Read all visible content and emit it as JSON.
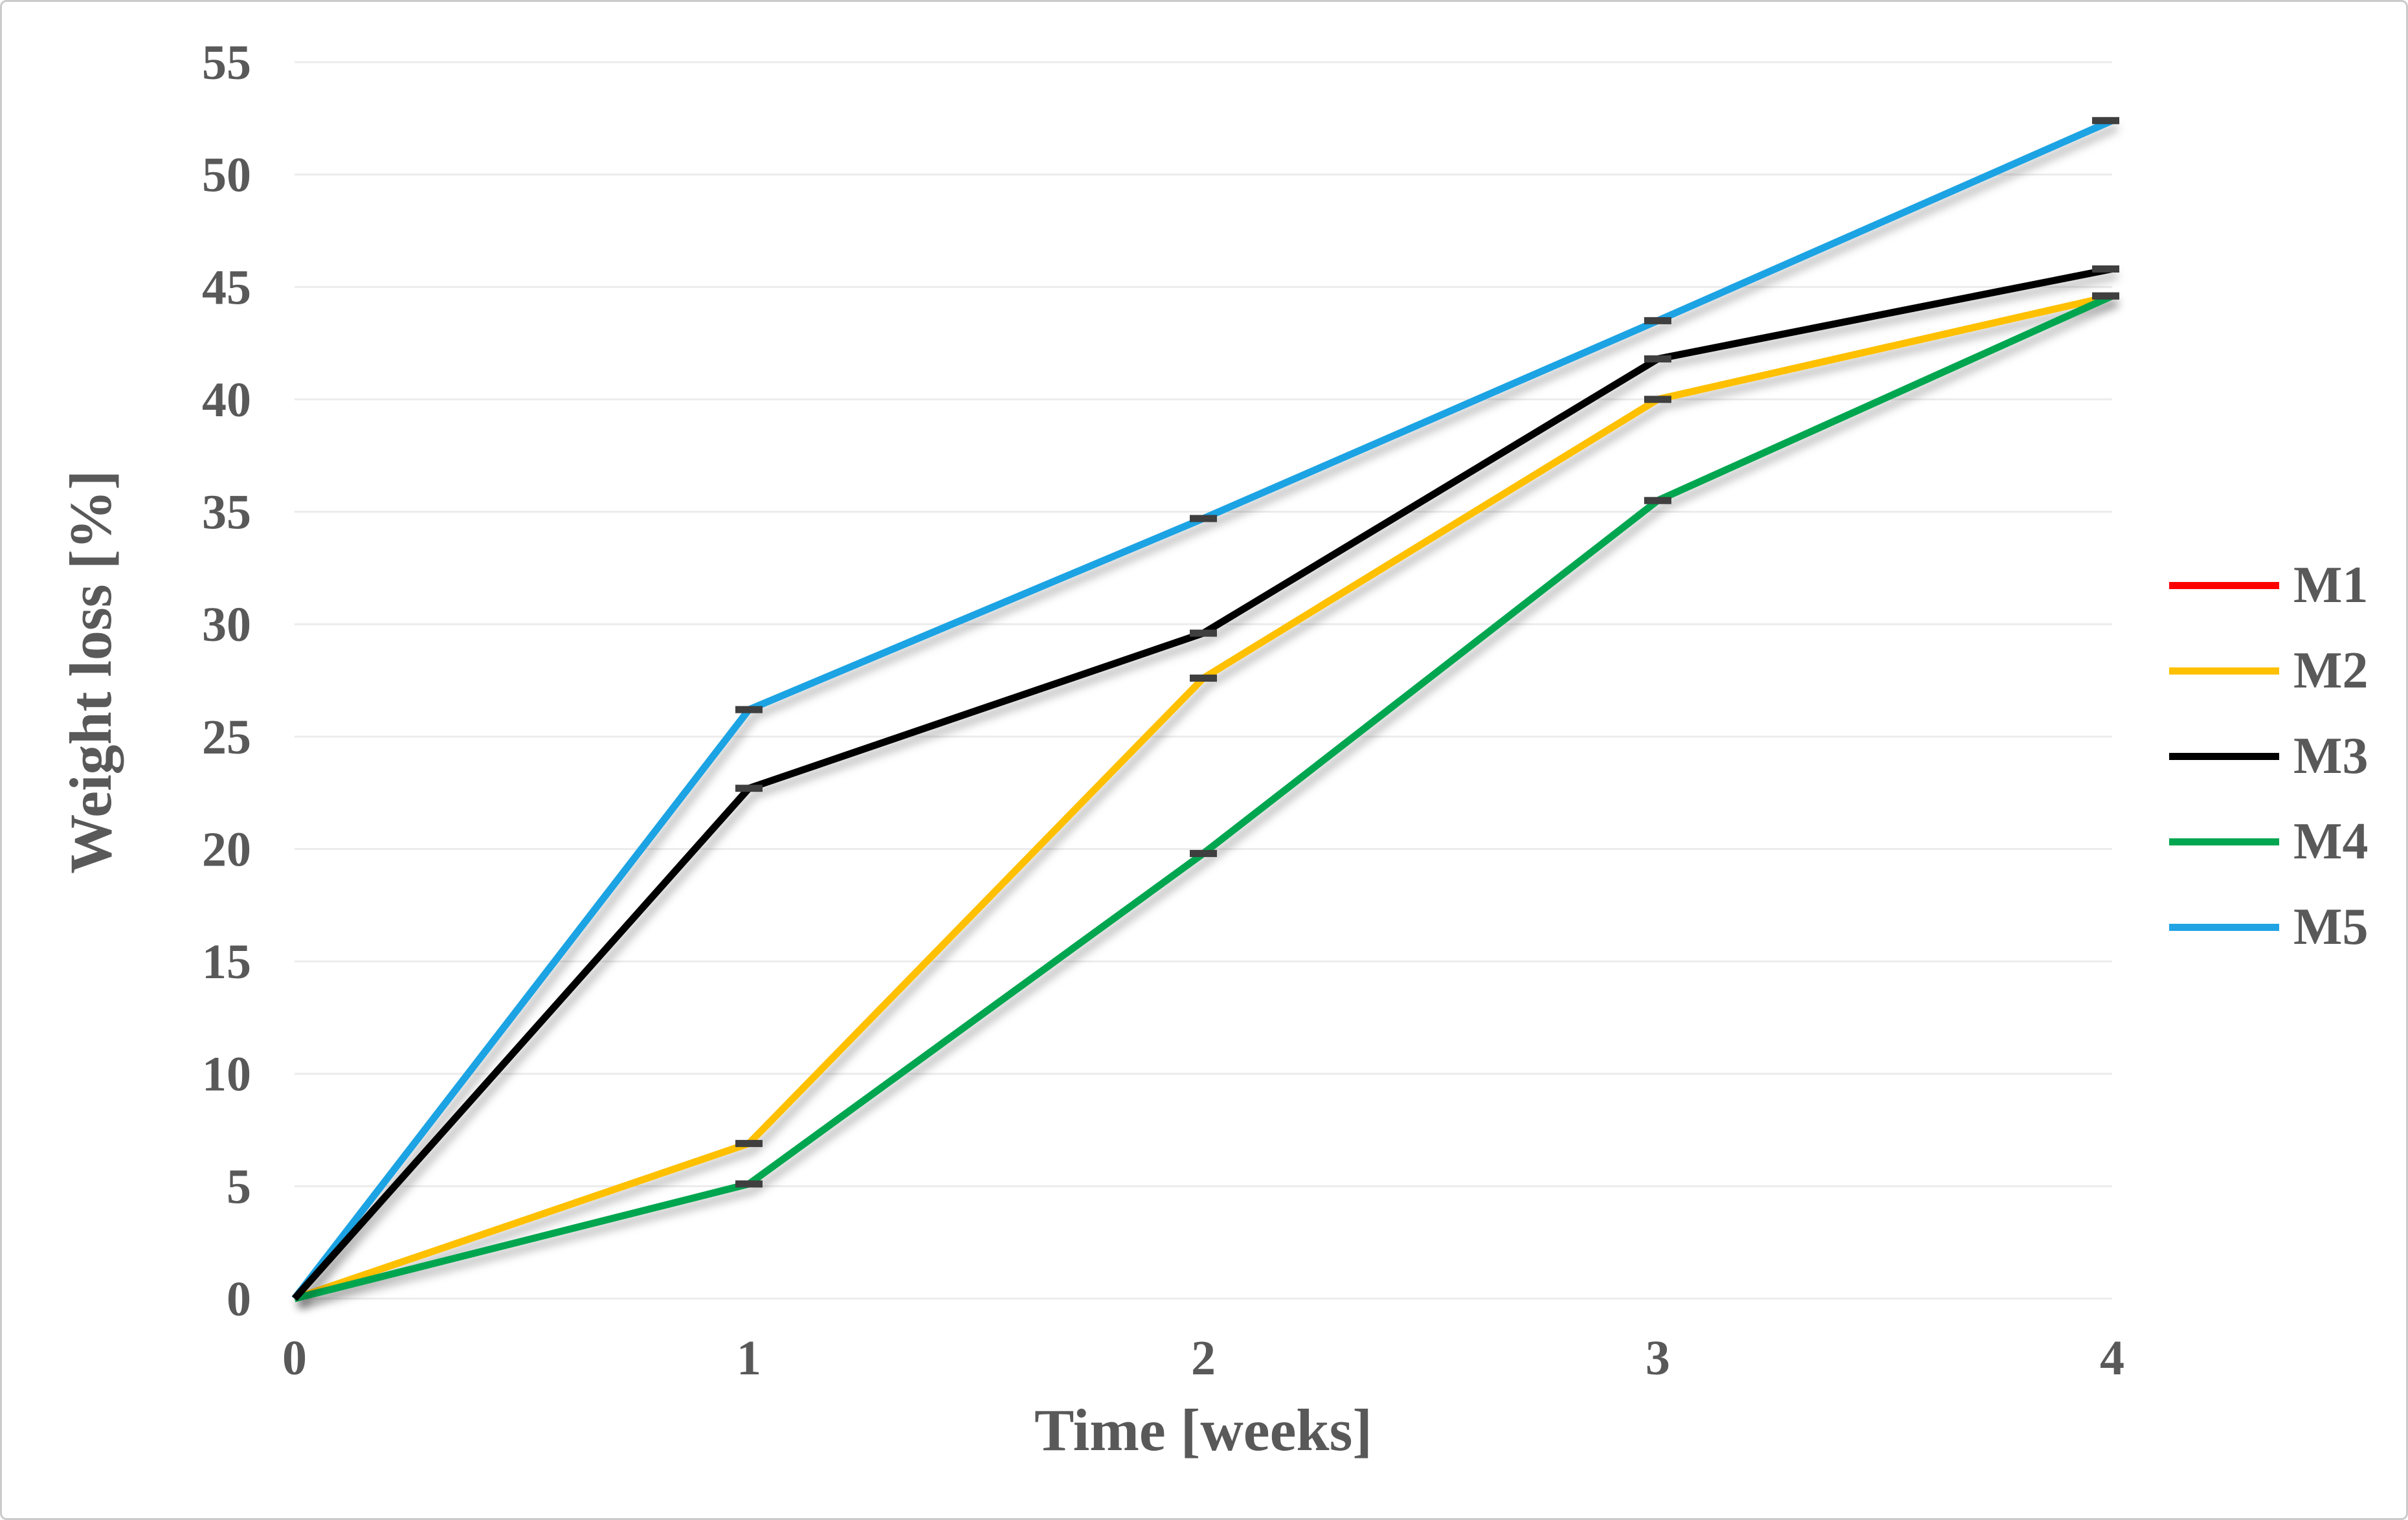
{
  "chart_data": {
    "type": "line",
    "title": "",
    "xlabel": "Time [weeks]",
    "ylabel": "Weight loss [%]",
    "x": [
      0,
      1,
      2,
      3,
      4
    ],
    "xticks": [
      0,
      1,
      2,
      3,
      4
    ],
    "yticks": [
      0,
      5,
      10,
      15,
      20,
      25,
      30,
      35,
      40,
      45,
      50,
      55
    ],
    "xlim": [
      0,
      4
    ],
    "ylim": [
      0,
      55
    ],
    "grid": "horizontal",
    "legend_position": "right-middle",
    "axis_text_color": "#595959",
    "gridline_color": "#ECECEC",
    "error_cap_color": "#3F3F3F",
    "series": [
      {
        "name": "M1",
        "color": "#FE0000",
        "values": [
          0,
          0,
          0,
          0,
          0
        ],
        "error_caps": false
      },
      {
        "name": "M2",
        "color": "#FFC000",
        "values": [
          0,
          6.9,
          27.6,
          40.0,
          44.6
        ],
        "error_caps": true
      },
      {
        "name": "M3",
        "color": "#000000",
        "values": [
          0,
          22.7,
          29.6,
          41.8,
          45.8
        ],
        "error_caps": true
      },
      {
        "name": "M4",
        "color": "#00A650",
        "values": [
          0,
          5.1,
          19.8,
          35.5,
          44.6
        ],
        "error_caps": true
      },
      {
        "name": "M5",
        "color": "#1FA3E3",
        "values": [
          0,
          26.2,
          34.7,
          43.5,
          52.4
        ],
        "error_caps": true
      }
    ]
  }
}
